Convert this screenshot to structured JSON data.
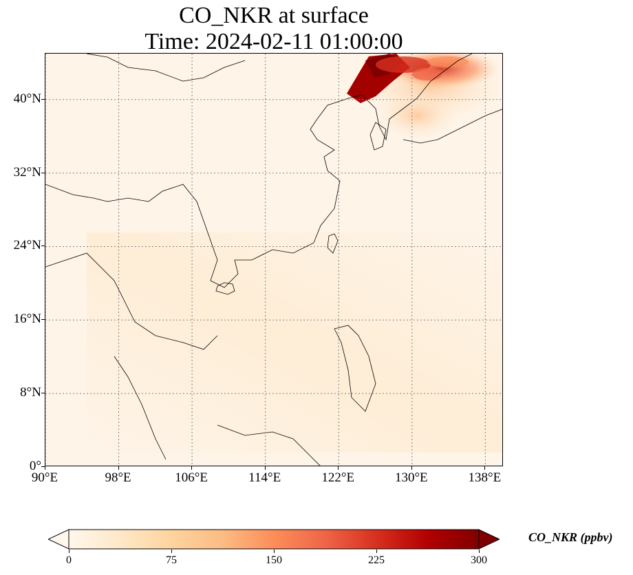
{
  "figure": {
    "title_line1": "CO_NKR at surface",
    "title_line2": "Time: 2024-02-11 01:00:00"
  },
  "map": {
    "projection": "PlateCarree",
    "lon_range": [
      90,
      140
    ],
    "lat_range": [
      0,
      45
    ],
    "gridlines": "dotted",
    "x_ticks": [
      {
        "lon": 90,
        "label": "90°E"
      },
      {
        "lon": 98,
        "label": "98°E"
      },
      {
        "lon": 106,
        "label": "106°E"
      },
      {
        "lon": 114,
        "label": "114°E"
      },
      {
        "lon": 122,
        "label": "122°E"
      },
      {
        "lon": 130,
        "label": "130°E"
      },
      {
        "lon": 138,
        "label": "138°E"
      }
    ],
    "y_ticks": [
      {
        "lat": 0,
        "label": "0°"
      },
      {
        "lat": 8,
        "label": "8°N"
      },
      {
        "lat": 16,
        "label": "16°N"
      },
      {
        "lat": 24,
        "label": "24°N"
      },
      {
        "lat": 32,
        "label": "32°N"
      },
      {
        "lat": 40,
        "label": "40°N"
      }
    ],
    "colors": {
      "background": "#fef4e8",
      "coastline": "#000000",
      "grid": "#808080"
    },
    "plume_note_value_max": 300
  },
  "colorbar": {
    "label": "CO_NKR (ppbv)",
    "cmap": "OrRd",
    "vmin": 0,
    "vmax": 300,
    "extend": "both",
    "ticks": [
      {
        "value": 0,
        "label": "0"
      },
      {
        "value": 75,
        "label": "75"
      },
      {
        "value": 150,
        "label": "150"
      },
      {
        "value": 225,
        "label": "225"
      },
      {
        "value": 300,
        "label": "300"
      }
    ],
    "stops": [
      "#fff7ec",
      "#fee8c8",
      "#fdd49e",
      "#fdbb84",
      "#fc8d59",
      "#ef6548",
      "#d7301f",
      "#b30000",
      "#7f0000"
    ]
  }
}
